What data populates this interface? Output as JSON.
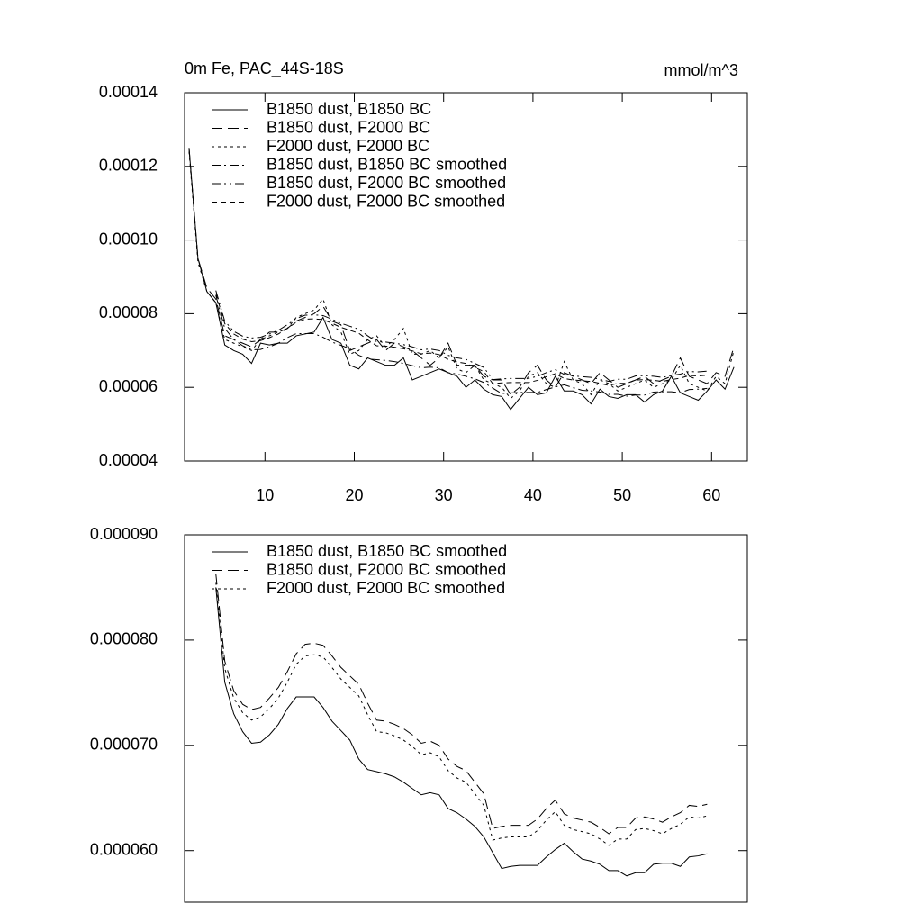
{
  "chart_data": [
    {
      "type": "line",
      "title": "0m Fe, PAC_44S-18S",
      "units_label": "mmol/m^3",
      "xlim": [
        1,
        64
      ],
      "xticks": [
        10,
        20,
        30,
        40,
        50,
        60
      ],
      "ylim": [
        4e-05,
        0.00014
      ],
      "yticks": [
        4e-05,
        6e-05,
        8e-05,
        {
          "value": 0.0001,
          "label": "0.00010"
        },
        0.00012,
        0.00014
      ],
      "legend": "upper left",
      "x": [
        1.5,
        2.5,
        3.5,
        4.5,
        5.5,
        6.5,
        7.5,
        8.5,
        9.5,
        10.5,
        11.5,
        12.5,
        13.5,
        14.5,
        15.5,
        16.5,
        17.5,
        18.5,
        19.5,
        20.5,
        21.5,
        22.5,
        23.5,
        24.5,
        25.5,
        26.5,
        27.5,
        28.5,
        29.5,
        30.5,
        31.5,
        32.5,
        33.5,
        34.5,
        35.5,
        36.5,
        37.5,
        38.5,
        39.5,
        40.5,
        41.5,
        42.5,
        43.5,
        44.5,
        45.5,
        46.5,
        47.5,
        48.5,
        49.5,
        50.5,
        51.5,
        52.5,
        53.5,
        54.5,
        55.5,
        56.5,
        57.5,
        58.5,
        59.5,
        60.5,
        61.5,
        62.5
      ],
      "series": [
        {
          "name": "B1850 dust, B1850 BC",
          "color": "#000000",
          "dash": "none",
          "values": [
            0.000125,
            9.5e-05,
            8.6e-05,
            8.3e-05,
            7.15e-05,
            7e-05,
            6.9e-05,
            6.65e-05,
            7.2e-05,
            7.15e-05,
            7.2e-05,
            7.2e-05,
            7.4e-05,
            7.45e-05,
            7.5e-05,
            7.9e-05,
            7.3e-05,
            7.2e-05,
            6.6e-05,
            6.5e-05,
            6.8e-05,
            6.7e-05,
            6.6e-05,
            6.6e-05,
            6.8e-05,
            6.2e-05,
            6.3e-05,
            6.4e-05,
            6.5e-05,
            6.4e-05,
            6.3e-05,
            6e-05,
            6.2e-05,
            5.95e-05,
            5.8e-05,
            5.75e-05,
            5.4e-05,
            5.7e-05,
            6e-05,
            5.8e-05,
            5.85e-05,
            6.3e-05,
            5.9e-05,
            5.9e-05,
            5.8e-05,
            5.55e-05,
            5.95e-05,
            5.75e-05,
            5.7e-05,
            5.8e-05,
            5.8e-05,
            5.6e-05,
            5.8e-05,
            5.9e-05,
            6.3e-05,
            5.85e-05,
            5.75e-05,
            5.65e-05,
            5.9e-05,
            6.2e-05,
            5.95e-05,
            6.55e-05
          ]
        },
        {
          "name": "B1850 dust, F2000 BC",
          "color": "#000000",
          "dash": "12 6",
          "values": [
            0.000125,
            9.5e-05,
            8.7e-05,
            8.4e-05,
            7.4e-05,
            7.3e-05,
            7.2e-05,
            7.1e-05,
            7.3e-05,
            7.5e-05,
            7.5e-05,
            7.6e-05,
            7.8e-05,
            7.9e-05,
            8e-05,
            8.2e-05,
            7.8e-05,
            7.7e-05,
            7e-05,
            7.1e-05,
            7.2e-05,
            7.3e-05,
            7e-05,
            7.2e-05,
            7.1e-05,
            7e-05,
            6.8e-05,
            6.6e-05,
            6.8e-05,
            7.2e-05,
            6.6e-05,
            6.6e-05,
            6.6e-05,
            6.3e-05,
            6.2e-05,
            6.2e-05,
            5.8e-05,
            6e-05,
            6.4e-05,
            6.6e-05,
            6.2e-05,
            6e-05,
            6.4e-05,
            6.3e-05,
            6.2e-05,
            6.1e-05,
            6.4e-05,
            6.2e-05,
            6e-05,
            6.1e-05,
            6.2e-05,
            6.3e-05,
            6.1e-05,
            6.2e-05,
            6.3e-05,
            6.8e-05,
            6.3e-05,
            6.2e-05,
            6.1e-05,
            6.4e-05,
            6.3e-05,
            7.1e-05
          ]
        },
        {
          "name": "F2000 dust, F2000 BC",
          "color": "#000000",
          "dash": "3 4",
          "values": [
            0.000124,
            9.4e-05,
            8.6e-05,
            8.3e-05,
            7.3e-05,
            7.2e-05,
            7.1e-05,
            7e-05,
            7.3e-05,
            7.4e-05,
            7.5e-05,
            7.6e-05,
            7.9e-05,
            8e-05,
            8.1e-05,
            8.4e-05,
            7.7e-05,
            7.5e-05,
            6.9e-05,
            7e-05,
            7.3e-05,
            7.4e-05,
            7.1e-05,
            7.3e-05,
            7.6e-05,
            6.9e-05,
            6.9e-05,
            7e-05,
            6.8e-05,
            7.1e-05,
            6.5e-05,
            6.4e-05,
            6.6e-05,
            6.2e-05,
            6.1e-05,
            6e-05,
            5.7e-05,
            5.9e-05,
            6.3e-05,
            6.4e-05,
            6.1e-05,
            6e-05,
            6.7e-05,
            6.2e-05,
            6.1e-05,
            5.8e-05,
            6.2e-05,
            6.1e-05,
            5.9e-05,
            6e-05,
            6.1e-05,
            6.2e-05,
            6e-05,
            6.1e-05,
            6.2e-05,
            6.6e-05,
            6.1e-05,
            6e-05,
            5.9e-05,
            6.3e-05,
            6.1e-05,
            7e-05
          ]
        },
        {
          "name": "B1850 dust, B1850 BC smoothed",
          "color": "#000000",
          "dash": "10 4 2 4",
          "values": [
            null,
            null,
            null,
            8.5e-05,
            7.6e-05,
            7.3e-05,
            7.13e-05,
            7.02e-05,
            7.03e-05,
            7.1e-05,
            7.2e-05,
            7.35e-05,
            7.46e-05,
            7.46e-05,
            7.46e-05,
            7.36e-05,
            7.23e-05,
            7.14e-05,
            7.05e-05,
            6.87e-05,
            6.77e-05,
            6.75e-05,
            6.73e-05,
            6.7e-05,
            6.65e-05,
            6.59e-05,
            6.53e-05,
            6.55e-05,
            6.53e-05,
            6.4e-05,
            6.36e-05,
            6.3e-05,
            6.23e-05,
            6.13e-05,
            5.98e-05,
            5.83e-05,
            5.85e-05,
            5.86e-05,
            5.86e-05,
            5.86e-05,
            5.94e-05,
            6.01e-05,
            6.07e-05,
            5.99e-05,
            5.92e-05,
            5.9e-05,
            5.87e-05,
            5.81e-05,
            5.81e-05,
            5.76e-05,
            5.79e-05,
            5.79e-05,
            5.87e-05,
            5.88e-05,
            5.88e-05,
            5.85e-05,
            5.94e-05,
            5.95e-05,
            5.97e-05,
            null,
            null,
            null
          ]
        },
        {
          "name": "B1850 dust, F2000 BC smoothed",
          "color": "#000000",
          "dash": "10 4 2 4 2 4",
          "values": [
            null,
            null,
            null,
            8.63e-05,
            7.8e-05,
            7.52e-05,
            7.39e-05,
            7.34e-05,
            7.36e-05,
            7.45e-05,
            7.55e-05,
            7.7e-05,
            7.87e-05,
            7.96e-05,
            7.97e-05,
            7.95e-05,
            7.85e-05,
            7.74e-05,
            7.66e-05,
            7.58e-05,
            7.4e-05,
            7.24e-05,
            7.23e-05,
            7.2e-05,
            7.16e-05,
            7.1e-05,
            7.02e-05,
            7.04e-05,
            7e-05,
            6.87e-05,
            6.8e-05,
            6.76e-05,
            6.65e-05,
            6.54e-05,
            6.21e-05,
            6.23e-05,
            6.24e-05,
            6.24e-05,
            6.24e-05,
            6.3e-05,
            6.4e-05,
            6.48e-05,
            6.35e-05,
            6.31e-05,
            6.29e-05,
            6.27e-05,
            6.22e-05,
            6.16e-05,
            6.22e-05,
            6.22e-05,
            6.31e-05,
            6.32e-05,
            6.3e-05,
            6.27e-05,
            6.32e-05,
            6.36e-05,
            6.43e-05,
            6.42e-05,
            6.44e-05,
            null,
            null,
            null
          ]
        },
        {
          "name": "F2000 dust, F2000 BC smoothed",
          "color": "#000000",
          "dash": "6 4",
          "values": [
            null,
            null,
            null,
            8.55e-05,
            7.73e-05,
            7.45e-05,
            7.31e-05,
            7.24e-05,
            7.27e-05,
            7.35e-05,
            7.45e-05,
            7.6e-05,
            7.77e-05,
            7.85e-05,
            7.86e-05,
            7.84e-05,
            7.74e-05,
            7.63e-05,
            7.55e-05,
            7.47e-05,
            7.29e-05,
            7.13e-05,
            7.12e-05,
            7.09e-05,
            7.05e-05,
            6.99e-05,
            6.91e-05,
            6.93e-05,
            6.89e-05,
            6.76e-05,
            6.69e-05,
            6.65e-05,
            6.54e-05,
            6.43e-05,
            6.1e-05,
            6.12e-05,
            6.13e-05,
            6.13e-05,
            6.13e-05,
            6.19e-05,
            6.29e-05,
            6.37e-05,
            6.24e-05,
            6.2e-05,
            6.18e-05,
            6.16e-05,
            6.11e-05,
            6.05e-05,
            6.11e-05,
            6.11e-05,
            6.2e-05,
            6.21e-05,
            6.19e-05,
            6.16e-05,
            6.21e-05,
            6.25e-05,
            6.32e-05,
            6.31e-05,
            6.33e-05,
            null,
            null,
            null
          ]
        }
      ]
    },
    {
      "type": "line",
      "xlim": [
        1,
        64
      ],
      "ylim": [
        5.51e-05,
        9e-05
      ],
      "yticks": [
        {
          "value": 6e-05,
          "label": "0.000060"
        },
        {
          "value": 7e-05,
          "label": "0.000070"
        },
        {
          "value": 8e-05,
          "label": "0.000080"
        },
        {
          "value": 9e-05,
          "label": "0.000090"
        }
      ],
      "legend": "upper left",
      "x": [
        4.5,
        5.5,
        6.5,
        7.5,
        8.5,
        9.5,
        10.5,
        11.5,
        12.5,
        13.5,
        14.5,
        15.5,
        16.5,
        17.5,
        18.5,
        19.5,
        20.5,
        21.5,
        22.5,
        23.5,
        24.5,
        25.5,
        26.5,
        27.5,
        28.5,
        29.5,
        30.5,
        31.5,
        32.5,
        33.5,
        34.5,
        35.5,
        36.5,
        37.5,
        38.5,
        39.5,
        40.5,
        41.5,
        42.5,
        43.5,
        44.5,
        45.5,
        46.5,
        47.5,
        48.5,
        49.5,
        50.5,
        51.5,
        52.5,
        53.5,
        54.5,
        55.5,
        56.5,
        57.5,
        58.5,
        59.5
      ],
      "series": [
        {
          "name": "B1850 dust, B1850 BC smoothed",
          "color": "#000000",
          "dash": "none",
          "values": [
            8.5e-05,
            7.6e-05,
            7.3e-05,
            7.13e-05,
            7.02e-05,
            7.03e-05,
            7.1e-05,
            7.2e-05,
            7.35e-05,
            7.46e-05,
            7.46e-05,
            7.46e-05,
            7.36e-05,
            7.23e-05,
            7.14e-05,
            7.05e-05,
            6.87e-05,
            6.77e-05,
            6.75e-05,
            6.73e-05,
            6.7e-05,
            6.65e-05,
            6.59e-05,
            6.53e-05,
            6.55e-05,
            6.53e-05,
            6.4e-05,
            6.36e-05,
            6.3e-05,
            6.23e-05,
            6.13e-05,
            5.98e-05,
            5.83e-05,
            5.85e-05,
            5.86e-05,
            5.86e-05,
            5.86e-05,
            5.94e-05,
            6.01e-05,
            6.07e-05,
            5.99e-05,
            5.92e-05,
            5.9e-05,
            5.87e-05,
            5.81e-05,
            5.81e-05,
            5.76e-05,
            5.79e-05,
            5.79e-05,
            5.87e-05,
            5.88e-05,
            5.88e-05,
            5.85e-05,
            5.94e-05,
            5.95e-05,
            5.97e-05
          ]
        },
        {
          "name": "B1850 dust, F2000 BC smoothed",
          "color": "#000000",
          "dash": "12 6",
          "values": [
            8.63e-05,
            7.8e-05,
            7.52e-05,
            7.39e-05,
            7.34e-05,
            7.36e-05,
            7.45e-05,
            7.55e-05,
            7.7e-05,
            7.87e-05,
            7.96e-05,
            7.97e-05,
            7.95e-05,
            7.85e-05,
            7.74e-05,
            7.66e-05,
            7.58e-05,
            7.4e-05,
            7.24e-05,
            7.23e-05,
            7.2e-05,
            7.16e-05,
            7.1e-05,
            7.02e-05,
            7.04e-05,
            7e-05,
            6.87e-05,
            6.8e-05,
            6.76e-05,
            6.65e-05,
            6.54e-05,
            6.21e-05,
            6.23e-05,
            6.24e-05,
            6.24e-05,
            6.24e-05,
            6.3e-05,
            6.4e-05,
            6.48e-05,
            6.35e-05,
            6.31e-05,
            6.29e-05,
            6.27e-05,
            6.22e-05,
            6.16e-05,
            6.22e-05,
            6.22e-05,
            6.31e-05,
            6.32e-05,
            6.3e-05,
            6.27e-05,
            6.32e-05,
            6.36e-05,
            6.43e-05,
            6.42e-05,
            6.44e-05
          ]
        },
        {
          "name": "F2000 dust, F2000 BC smoothed",
          "color": "#000000",
          "dash": "3 4",
          "values": [
            8.55e-05,
            7.73e-05,
            7.45e-05,
            7.31e-05,
            7.24e-05,
            7.27e-05,
            7.35e-05,
            7.45e-05,
            7.6e-05,
            7.77e-05,
            7.85e-05,
            7.86e-05,
            7.84e-05,
            7.74e-05,
            7.63e-05,
            7.55e-05,
            7.47e-05,
            7.29e-05,
            7.13e-05,
            7.12e-05,
            7.09e-05,
            7.05e-05,
            6.99e-05,
            6.91e-05,
            6.93e-05,
            6.89e-05,
            6.76e-05,
            6.69e-05,
            6.65e-05,
            6.54e-05,
            6.43e-05,
            6.1e-05,
            6.12e-05,
            6.13e-05,
            6.13e-05,
            6.13e-05,
            6.19e-05,
            6.29e-05,
            6.37e-05,
            6.24e-05,
            6.2e-05,
            6.18e-05,
            6.16e-05,
            6.11e-05,
            6.05e-05,
            6.11e-05,
            6.11e-05,
            6.2e-05,
            6.21e-05,
            6.19e-05,
            6.16e-05,
            6.21e-05,
            6.25e-05,
            6.32e-05,
            6.31e-05,
            6.33e-05
          ]
        }
      ]
    }
  ]
}
